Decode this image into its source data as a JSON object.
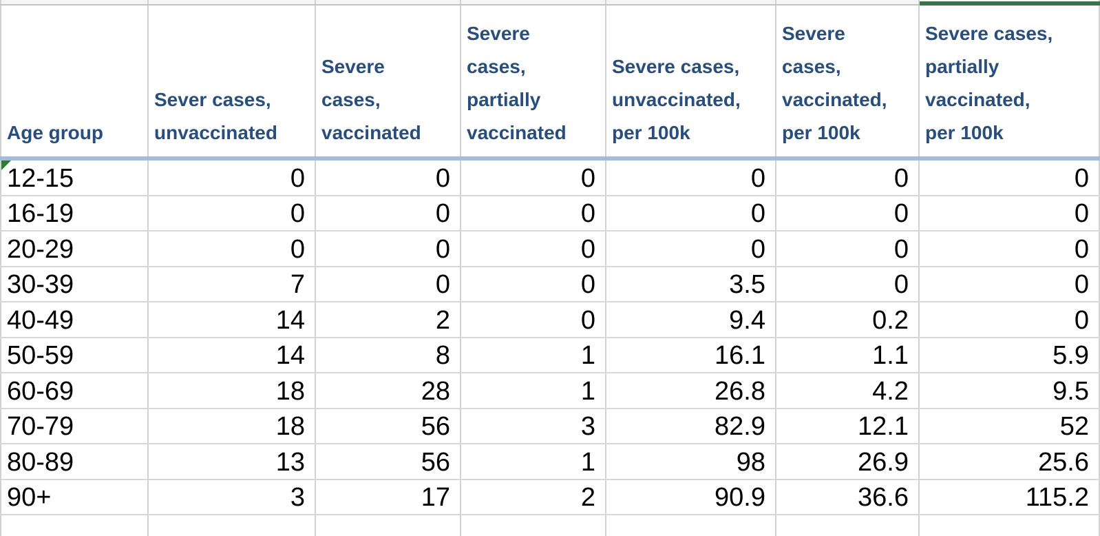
{
  "table": {
    "columns": [
      {
        "label": "Age group"
      },
      {
        "label": "Sever cases,\nunvaccinated"
      },
      {
        "label": "Severe\ncases,\nvaccinated"
      },
      {
        "label": "Severe\ncases,\npartially\nvaccinated"
      },
      {
        "label": "Severe cases,\nunvaccinated,\nper 100k"
      },
      {
        "label": "Severe\ncases,\nvaccinated,\nper 100k"
      },
      {
        "label": "Severe cases,\npartially\nvaccinated,\nper 100k"
      }
    ],
    "rows": [
      {
        "age_group": "12-15",
        "values": [
          "0",
          "0",
          "0",
          "0",
          "0",
          "0"
        ]
      },
      {
        "age_group": "16-19",
        "values": [
          "0",
          "0",
          "0",
          "0",
          "0",
          "0"
        ]
      },
      {
        "age_group": "20-29",
        "values": [
          "0",
          "0",
          "0",
          "0",
          "0",
          "0"
        ]
      },
      {
        "age_group": "30-39",
        "values": [
          "7",
          "0",
          "0",
          "3.5",
          "0",
          "0"
        ]
      },
      {
        "age_group": "40-49",
        "values": [
          "14",
          "2",
          "0",
          "9.4",
          "0.2",
          "0"
        ]
      },
      {
        "age_group": "50-59",
        "values": [
          "14",
          "8",
          "1",
          "16.1",
          "1.1",
          "5.9"
        ]
      },
      {
        "age_group": "60-69",
        "values": [
          "18",
          "28",
          "1",
          "26.8",
          "4.2",
          "9.5"
        ]
      },
      {
        "age_group": "70-79",
        "values": [
          "18",
          "56",
          "3",
          "82.9",
          "12.1",
          "52"
        ]
      },
      {
        "age_group": "80-89",
        "values": [
          "13",
          "56",
          "1",
          "98",
          "26.9",
          "25.6"
        ]
      },
      {
        "age_group": "90+",
        "values": [
          "3",
          "17",
          "2",
          "90.9",
          "36.6",
          "115.2"
        ]
      }
    ]
  },
  "colors": {
    "header_text": "#284E7E",
    "gridline": "#d2d2d2",
    "header_underline": "#A4BCDC",
    "green_top_border": "#3B7249",
    "error_triangle": "#2F7A35",
    "sliver_background": "#f5f5f5"
  }
}
